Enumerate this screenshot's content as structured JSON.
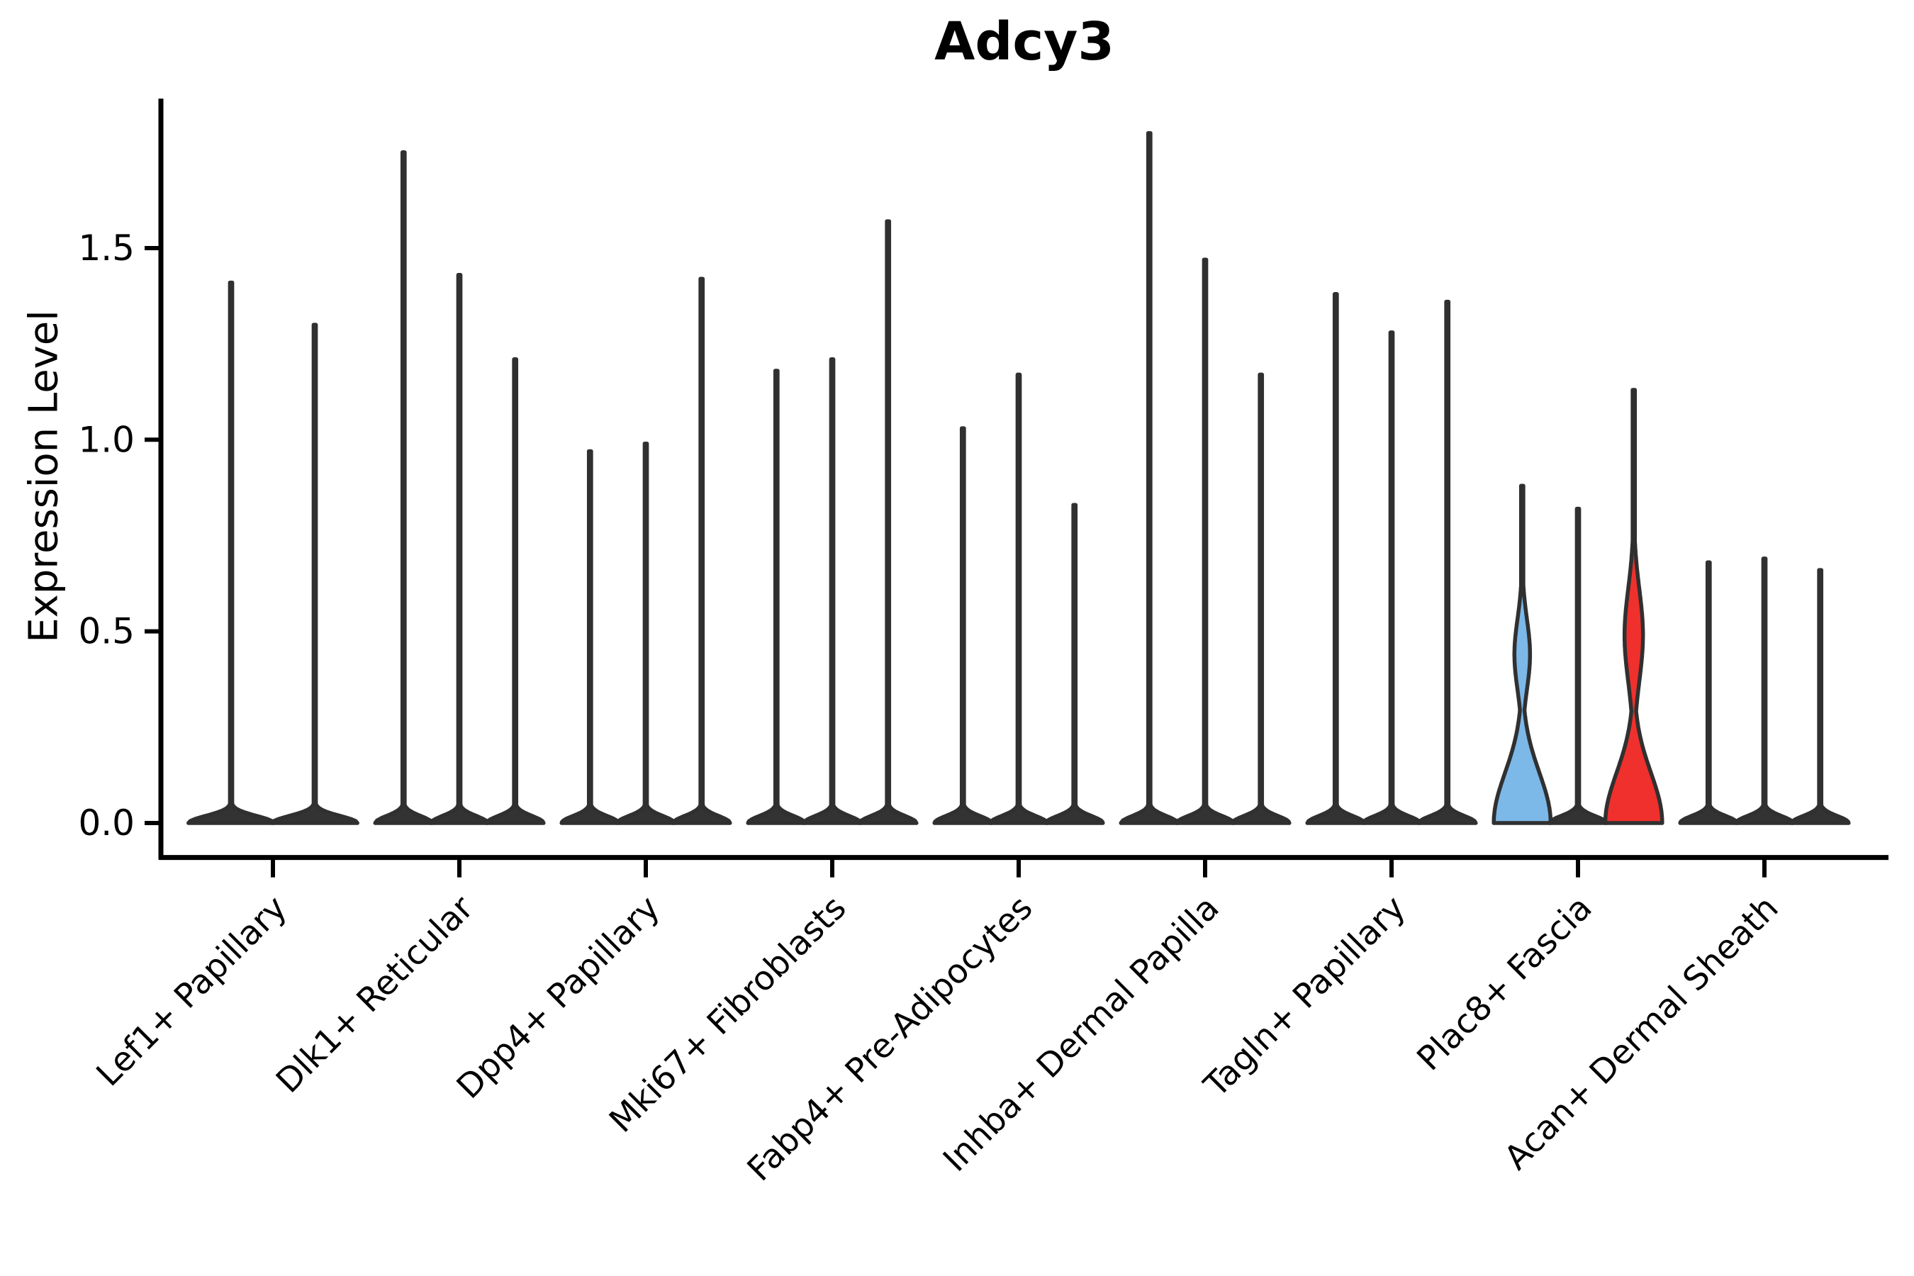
{
  "chart_data": {
    "type": "violin",
    "title": "Adcy3",
    "ylabel": "Expression Level",
    "xlabel": "",
    "ylim": [
      -0.09,
      1.89
    ],
    "yticks": [
      {
        "value": 0.0,
        "label": "0.0"
      },
      {
        "value": 0.5,
        "label": "0.5"
      },
      {
        "value": 1.0,
        "label": "1.0"
      },
      {
        "value": 1.5,
        "label": "1.5"
      }
    ],
    "grid": false,
    "legend": "none",
    "description": "Violin plot of Adcy3 expression level per fibroblast cell-type group; each group contains violins for individual samples (most violins are near-zero dense with a thin spike to the max expression). One blue and one red highlighted violin appear in the Plac8+ Fascia group.",
    "groups": [
      {
        "label": "Lef1+ Papillary",
        "violins": [
          {
            "max": 1.41
          },
          {
            "max": 1.3
          }
        ]
      },
      {
        "label": "Dlk1+ Reticular",
        "violins": [
          {
            "max": 1.75
          },
          {
            "max": 1.43
          },
          {
            "max": 1.21
          }
        ]
      },
      {
        "label": "Dpp4+ Papillary",
        "violins": [
          {
            "max": 0.97
          },
          {
            "max": 0.99
          },
          {
            "max": 1.42
          }
        ]
      },
      {
        "label": "Mki67+ Fibroblasts",
        "violins": [
          {
            "max": 1.18
          },
          {
            "max": 1.21
          },
          {
            "max": 1.57
          }
        ]
      },
      {
        "label": "Fabp4+ Pre-Adipocytes",
        "violins": [
          {
            "max": 1.03
          },
          {
            "max": 1.17
          },
          {
            "max": 0.83
          }
        ]
      },
      {
        "label": "Inhba+ Dermal Papilla",
        "violins": [
          {
            "max": 1.8
          },
          {
            "max": 1.47
          },
          {
            "max": 1.17
          }
        ]
      },
      {
        "label": "Tagln+ Papillary",
        "violins": [
          {
            "max": 1.38
          },
          {
            "max": 1.28
          },
          {
            "max": 1.36
          }
        ]
      },
      {
        "label": "Plac8+ Fascia",
        "violins": [
          {
            "max": 0.88,
            "fill": "#7cb8e8",
            "fat_base": true,
            "bulge": {
              "center": 0.44,
              "halfwidth": 11,
              "sigma": 0.13
            }
          },
          {
            "max": 0.82
          },
          {
            "max": 1.13,
            "fill": "#f0302c",
            "fat_base": true,
            "bulge": {
              "center": 0.49,
              "halfwidth": 13,
              "sigma": 0.17
            }
          }
        ]
      },
      {
        "label": "Acan+ Dermal Sheath",
        "violins": [
          {
            "max": 0.68
          },
          {
            "max": 0.69
          },
          {
            "max": 0.66
          }
        ]
      }
    ],
    "colors": {
      "axis": "#000000",
      "violin_outline": "#303030",
      "violin_fill_default": "#333333",
      "highlight_blue": "#7cb8e8",
      "highlight_red": "#f0302c"
    }
  }
}
